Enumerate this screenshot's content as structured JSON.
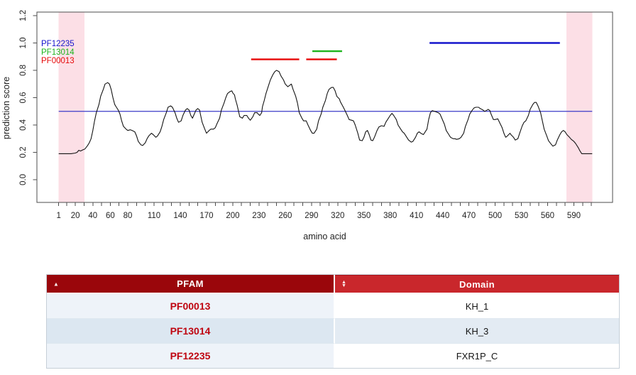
{
  "chart_data": {
    "type": "line",
    "title": "",
    "xlabel": "amino acid",
    "ylabel": "prediction score",
    "xlim": [
      1,
      611
    ],
    "ylim": [
      0,
      1.2
    ],
    "grid": false,
    "x_major_ticks": [
      1,
      20,
      40,
      60,
      80,
      110,
      140,
      170,
      200,
      230,
      260,
      290,
      320,
      350,
      380,
      410,
      440,
      470,
      500,
      530,
      560,
      590
    ],
    "x_minor_tick_step": 10,
    "y_tick_labels": [
      "0.0",
      "0.2",
      "0.4",
      "0.6",
      "0.8",
      "1.0",
      "1.2"
    ],
    "legend": {
      "position": "top-left",
      "entries": [
        {
          "label": "PF12235",
          "color": "#1414cc"
        },
        {
          "label": "PF13014",
          "color": "#1db41d"
        },
        {
          "label": "PF00013",
          "color": "#e60808"
        }
      ]
    },
    "threshold_line": {
      "y": 0.5,
      "x_start": 1,
      "x_end": 611,
      "color": "#3b3bc8"
    },
    "highlight_color": "#fcdfe6",
    "highlighted_regions": [
      {
        "from": 1,
        "to": 30.5
      },
      {
        "from": 581.5,
        "to": 611
      }
    ],
    "domain_markers": [
      {
        "pfam": "PF12235",
        "color": "#1414cc",
        "score": 1.0,
        "segments": [
          [
            425,
            574
          ]
        ]
      },
      {
        "pfam": "PF13014",
        "color": "#1db41d",
        "score": 0.94,
        "segments": [
          [
            291,
            325
          ]
        ]
      },
      {
        "pfam": "PF00013",
        "color": "#e60808",
        "score": 0.88,
        "segments": [
          [
            221,
            276
          ],
          [
            284,
            319
          ]
        ]
      }
    ],
    "series": [
      {
        "name": "prediction score",
        "color": "#141414",
        "points": [
          [
            1,
            0.19
          ],
          [
            8,
            0.19
          ],
          [
            15,
            0.19
          ],
          [
            20,
            0.195
          ],
          [
            22,
            0.2
          ],
          [
            24,
            0.215
          ],
          [
            26,
            0.21
          ],
          [
            29,
            0.22
          ],
          [
            31,
            0.225
          ],
          [
            34,
            0.25
          ],
          [
            36,
            0.27
          ],
          [
            38,
            0.3
          ],
          [
            40,
            0.36
          ],
          [
            42,
            0.43
          ],
          [
            44,
            0.49
          ],
          [
            47,
            0.55
          ],
          [
            49,
            0.61
          ],
          [
            52,
            0.66
          ],
          [
            54,
            0.7
          ],
          [
            57,
            0.71
          ],
          [
            59,
            0.7
          ],
          [
            61,
            0.66
          ],
          [
            63,
            0.6
          ],
          [
            65,
            0.55
          ],
          [
            67,
            0.53
          ],
          [
            69,
            0.51
          ],
          [
            71,
            0.48
          ],
          [
            73,
            0.43
          ],
          [
            75,
            0.39
          ],
          [
            78,
            0.37
          ],
          [
            80,
            0.36
          ],
          [
            83,
            0.365
          ],
          [
            85,
            0.36
          ],
          [
            88,
            0.35
          ],
          [
            90,
            0.32
          ],
          [
            92,
            0.28
          ],
          [
            95,
            0.255
          ],
          [
            97,
            0.25
          ],
          [
            100,
            0.27
          ],
          [
            102,
            0.3
          ],
          [
            104,
            0.32
          ],
          [
            107,
            0.34
          ],
          [
            109,
            0.33
          ],
          [
            112,
            0.31
          ],
          [
            114,
            0.32
          ],
          [
            117,
            0.35
          ],
          [
            119,
            0.39
          ],
          [
            121,
            0.44
          ],
          [
            124,
            0.49
          ],
          [
            126,
            0.53
          ],
          [
            129,
            0.54
          ],
          [
            131,
            0.53
          ],
          [
            134,
            0.49
          ],
          [
            136,
            0.45
          ],
          [
            138,
            0.42
          ],
          [
            141,
            0.43
          ],
          [
            143,
            0.47
          ],
          [
            146,
            0.51
          ],
          [
            148,
            0.52
          ],
          [
            150,
            0.51
          ],
          [
            152,
            0.47
          ],
          [
            154,
            0.45
          ],
          [
            156,
            0.48
          ],
          [
            158,
            0.51
          ],
          [
            160,
            0.52
          ],
          [
            162,
            0.51
          ],
          [
            163,
            0.48
          ],
          [
            165,
            0.42
          ],
          [
            168,
            0.37
          ],
          [
            170,
            0.34
          ],
          [
            173,
            0.36
          ],
          [
            175,
            0.37
          ],
          [
            178,
            0.37
          ],
          [
            180,
            0.38
          ],
          [
            182,
            0.41
          ],
          [
            185,
            0.45
          ],
          [
            187,
            0.51
          ],
          [
            190,
            0.56
          ],
          [
            192,
            0.6
          ],
          [
            194,
            0.63
          ],
          [
            197,
            0.645
          ],
          [
            199,
            0.65
          ],
          [
            200,
            0.635
          ],
          [
            202,
            0.62
          ],
          [
            203,
            0.59
          ],
          [
            205,
            0.545
          ],
          [
            207,
            0.49
          ],
          [
            208,
            0.46
          ],
          [
            211,
            0.45
          ],
          [
            213,
            0.47
          ],
          [
            216,
            0.47
          ],
          [
            218,
            0.45
          ],
          [
            220,
            0.435
          ],
          [
            223,
            0.46
          ],
          [
            225,
            0.49
          ],
          [
            228,
            0.49
          ],
          [
            229,
            0.48
          ],
          [
            231,
            0.47
          ],
          [
            233,
            0.49
          ],
          [
            234,
            0.535
          ],
          [
            236,
            0.58
          ],
          [
            238,
            0.63
          ],
          [
            241,
            0.69
          ],
          [
            243,
            0.73
          ],
          [
            246,
            0.77
          ],
          [
            248,
            0.79
          ],
          [
            250,
            0.8
          ],
          [
            253,
            0.79
          ],
          [
            255,
            0.76
          ],
          [
            258,
            0.73
          ],
          [
            260,
            0.7
          ],
          [
            263,
            0.68
          ],
          [
            265,
            0.69
          ],
          [
            267,
            0.7
          ],
          [
            269,
            0.66
          ],
          [
            272,
            0.61
          ],
          [
            274,
            0.56
          ],
          [
            276,
            0.49
          ],
          [
            279,
            0.45
          ],
          [
            281,
            0.43
          ],
          [
            284,
            0.43
          ],
          [
            286,
            0.4
          ],
          [
            289,
            0.36
          ],
          [
            291,
            0.34
          ],
          [
            293,
            0.34
          ],
          [
            296,
            0.37
          ],
          [
            298,
            0.43
          ],
          [
            301,
            0.48
          ],
          [
            303,
            0.53
          ],
          [
            306,
            0.58
          ],
          [
            308,
            0.63
          ],
          [
            310,
            0.66
          ],
          [
            313,
            0.675
          ],
          [
            315,
            0.675
          ],
          [
            317,
            0.65
          ],
          [
            319,
            0.61
          ],
          [
            322,
            0.59
          ],
          [
            323,
            0.57
          ],
          [
            326,
            0.535
          ],
          [
            328,
            0.51
          ],
          [
            331,
            0.47
          ],
          [
            333,
            0.44
          ],
          [
            336,
            0.435
          ],
          [
            338,
            0.43
          ],
          [
            340,
            0.4
          ],
          [
            343,
            0.34
          ],
          [
            345,
            0.29
          ],
          [
            348,
            0.285
          ],
          [
            350,
            0.31
          ],
          [
            352,
            0.35
          ],
          [
            354,
            0.36
          ],
          [
            356,
            0.33
          ],
          [
            358,
            0.29
          ],
          [
            360,
            0.285
          ],
          [
            362,
            0.31
          ],
          [
            365,
            0.36
          ],
          [
            367,
            0.385
          ],
          [
            370,
            0.395
          ],
          [
            373,
            0.39
          ],
          [
            375,
            0.42
          ],
          [
            378,
            0.45
          ],
          [
            380,
            0.47
          ],
          [
            382,
            0.485
          ],
          [
            384,
            0.47
          ],
          [
            387,
            0.44
          ],
          [
            389,
            0.4
          ],
          [
            392,
            0.37
          ],
          [
            394,
            0.35
          ],
          [
            396,
            0.34
          ],
          [
            399,
            0.31
          ],
          [
            401,
            0.29
          ],
          [
            404,
            0.275
          ],
          [
            406,
            0.28
          ],
          [
            409,
            0.31
          ],
          [
            411,
            0.34
          ],
          [
            413,
            0.35
          ],
          [
            415,
            0.34
          ],
          [
            418,
            0.33
          ],
          [
            419,
            0.34
          ],
          [
            422,
            0.37
          ],
          [
            424,
            0.44
          ],
          [
            426,
            0.49
          ],
          [
            428,
            0.505
          ],
          [
            431,
            0.5
          ],
          [
            433,
            0.495
          ],
          [
            435,
            0.49
          ],
          [
            437,
            0.48
          ],
          [
            439,
            0.45
          ],
          [
            442,
            0.405
          ],
          [
            444,
            0.36
          ],
          [
            447,
            0.33
          ],
          [
            449,
            0.31
          ],
          [
            452,
            0.3
          ],
          [
            454,
            0.3
          ],
          [
            456,
            0.295
          ],
          [
            459,
            0.3
          ],
          [
            461,
            0.31
          ],
          [
            464,
            0.34
          ],
          [
            466,
            0.39
          ],
          [
            469,
            0.44
          ],
          [
            471,
            0.48
          ],
          [
            474,
            0.51
          ],
          [
            476,
            0.525
          ],
          [
            478,
            0.53
          ],
          [
            481,
            0.53
          ],
          [
            483,
            0.52
          ],
          [
            486,
            0.51
          ],
          [
            488,
            0.5
          ],
          [
            491,
            0.51
          ],
          [
            492,
            0.515
          ],
          [
            494,
            0.505
          ],
          [
            495,
            0.485
          ],
          [
            498,
            0.44
          ],
          [
            500,
            0.44
          ],
          [
            503,
            0.445
          ],
          [
            505,
            0.42
          ],
          [
            508,
            0.38
          ],
          [
            510,
            0.34
          ],
          [
            512,
            0.31
          ],
          [
            514,
            0.32
          ],
          [
            517,
            0.34
          ],
          [
            518,
            0.33
          ],
          [
            521,
            0.31
          ],
          [
            523,
            0.29
          ],
          [
            526,
            0.3
          ],
          [
            528,
            0.34
          ],
          [
            531,
            0.395
          ],
          [
            533,
            0.42
          ],
          [
            535,
            0.43
          ],
          [
            538,
            0.47
          ],
          [
            540,
            0.515
          ],
          [
            543,
            0.55
          ],
          [
            545,
            0.565
          ],
          [
            547,
            0.565
          ],
          [
            549,
            0.54
          ],
          [
            552,
            0.49
          ],
          [
            554,
            0.43
          ],
          [
            556,
            0.37
          ],
          [
            559,
            0.32
          ],
          [
            561,
            0.285
          ],
          [
            564,
            0.26
          ],
          [
            566,
            0.245
          ],
          [
            569,
            0.255
          ],
          [
            571,
            0.29
          ],
          [
            574,
            0.33
          ],
          [
            576,
            0.35
          ],
          [
            578,
            0.36
          ],
          [
            580,
            0.35
          ],
          [
            582,
            0.33
          ],
          [
            585,
            0.31
          ],
          [
            587,
            0.295
          ],
          [
            590,
            0.28
          ],
          [
            592,
            0.265
          ],
          [
            595,
            0.235
          ],
          [
            597,
            0.21
          ],
          [
            599,
            0.19
          ],
          [
            603,
            0.19
          ],
          [
            607,
            0.19
          ],
          [
            611,
            0.19
          ]
        ]
      }
    ]
  },
  "table": {
    "columns": [
      {
        "label": "PFAM",
        "sort": "ascending"
      },
      {
        "label": "Domain",
        "sort": "none"
      }
    ],
    "sort_icons": {
      "asc": "▲",
      "up": "▲",
      "down": "▼"
    },
    "rows": [
      {
        "pfam": "PF00013",
        "domain": "KH_1"
      },
      {
        "pfam": "PF13014",
        "domain": "KH_3"
      },
      {
        "pfam": "PF12235",
        "domain": "FXR1P_C"
      }
    ],
    "header_colors": {
      "sorted": "#9a060b",
      "unsorted": "#c9272c"
    },
    "pfam_text_color": "#bf0510"
  }
}
